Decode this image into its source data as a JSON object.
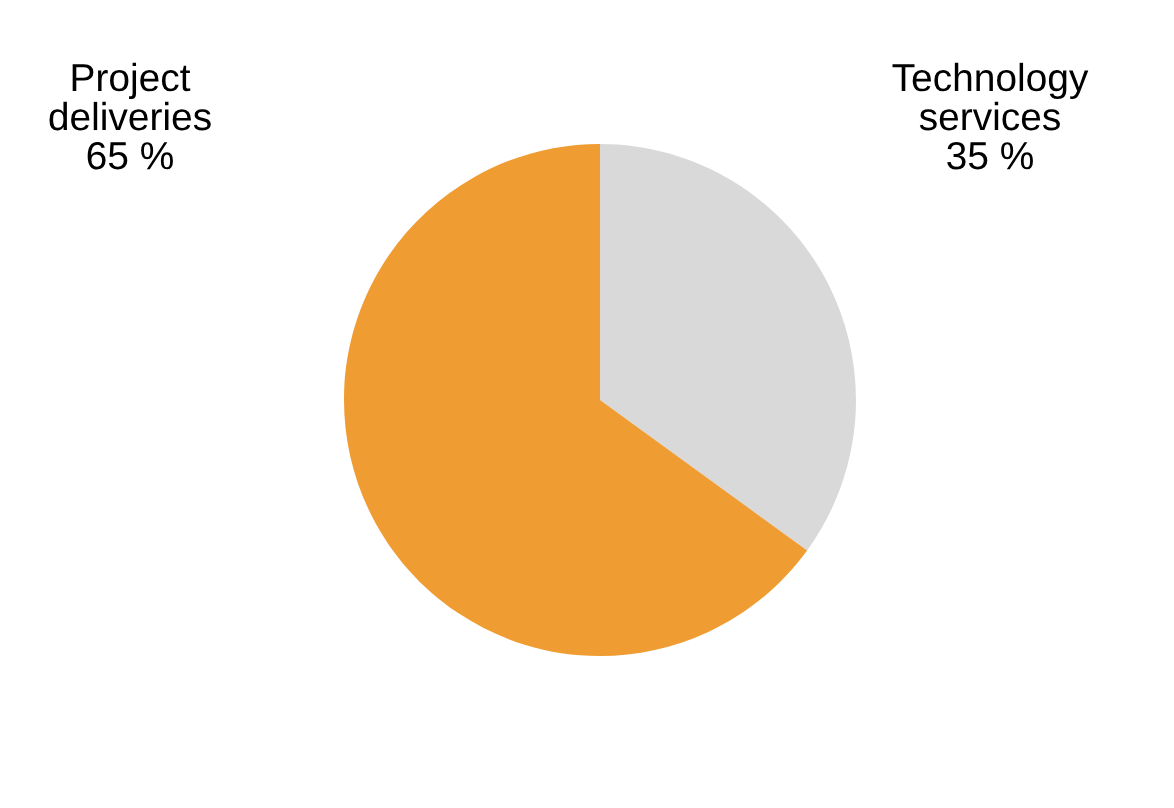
{
  "chart_data": {
    "type": "pie",
    "categories": [
      "Technology services",
      "Project deliveries"
    ],
    "values": [
      35,
      65
    ],
    "value_labels": [
      "35 %",
      "65 %"
    ],
    "colors": [
      "#d9d9d9",
      "#ef9c32"
    ],
    "legend": false
  }
}
